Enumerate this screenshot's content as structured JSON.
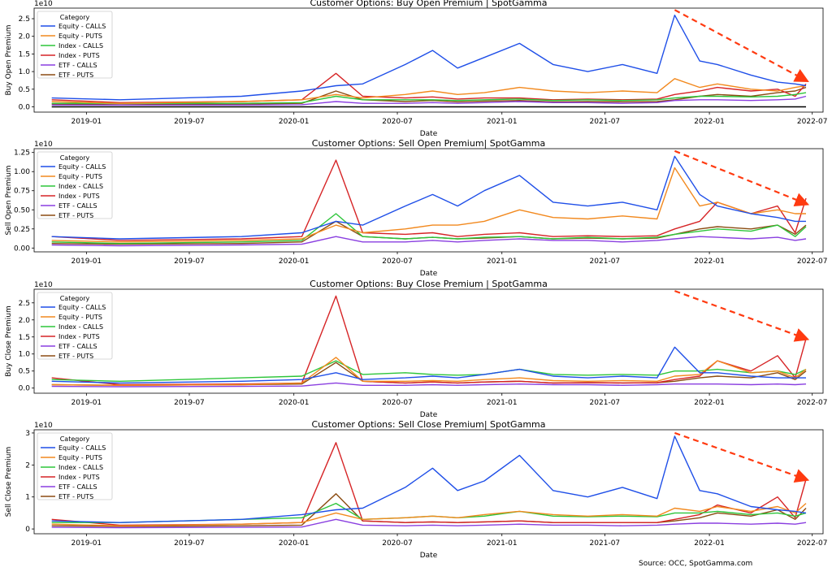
{
  "footer": {
    "source": "Source: OCC, SpotGamma.com"
  },
  "styles": {
    "series_colors": [
      "#1f4fe8",
      "#f2891e",
      "#2dc53a",
      "#d62426",
      "#8a3fe0",
      "#8b4c12"
    ],
    "arrow_color": "#ff3a10"
  },
  "chart_data": [
    {
      "type": "line",
      "title": "Customer Options: Buy Open Premium | SpotGamma",
      "ylabel": "Buy Open Premium",
      "xlabel": "Date",
      "scale_label": "1e10",
      "xticks": [
        "2019-01",
        "2019-07",
        "2020-01",
        "2020-07",
        "2021-01",
        "2021-07",
        "2022-01",
        "2022-07"
      ],
      "yticks": [
        "0.0",
        "0.5",
        "1.0",
        "1.5",
        "2.0",
        "2.5"
      ],
      "ylim": [
        -0.15,
        2.8
      ],
      "xlim": [
        "2018-10-01",
        "2022-07-20"
      ],
      "legend_title": "Category",
      "legend_position": "top-left",
      "zero_line": true,
      "x": [
        "2018-11-01",
        "2019-03-01",
        "2019-10-01",
        "2020-01-15",
        "2020-03-15",
        "2020-05-01",
        "2020-07-15",
        "2020-09-01",
        "2020-10-15",
        "2020-12-01",
        "2021-02-01",
        "2021-04-01",
        "2021-06-01",
        "2021-08-01",
        "2021-10-01",
        "2021-11-01",
        "2021-12-15",
        "2022-01-15",
        "2022-03-15",
        "2022-05-01",
        "2022-06-01",
        "2022-06-20"
      ],
      "series": [
        {
          "name": "Equity - CALLS",
          "values": [
            0.25,
            0.2,
            0.3,
            0.45,
            0.6,
            0.65,
            1.2,
            1.6,
            1.1,
            1.4,
            1.8,
            1.2,
            1.0,
            1.2,
            0.95,
            2.6,
            1.3,
            1.2,
            0.9,
            0.7,
            0.65,
            0.6
          ]
        },
        {
          "name": "Equity - PUTS",
          "values": [
            0.15,
            0.1,
            0.15,
            0.2,
            0.35,
            0.25,
            0.35,
            0.45,
            0.35,
            0.4,
            0.55,
            0.45,
            0.4,
            0.45,
            0.4,
            0.8,
            0.55,
            0.65,
            0.5,
            0.45,
            0.55,
            0.6
          ]
        },
        {
          "name": "Index - CALLS",
          "values": [
            0.1,
            0.1,
            0.1,
            0.12,
            0.3,
            0.2,
            0.2,
            0.2,
            0.18,
            0.2,
            0.22,
            0.18,
            0.2,
            0.18,
            0.2,
            0.25,
            0.3,
            0.3,
            0.28,
            0.3,
            0.35,
            0.4
          ]
        },
        {
          "name": "Index - PUTS",
          "values": [
            0.2,
            0.12,
            0.15,
            0.2,
            0.95,
            0.3,
            0.25,
            0.28,
            0.22,
            0.25,
            0.25,
            0.2,
            0.22,
            0.2,
            0.22,
            0.35,
            0.45,
            0.55,
            0.45,
            0.5,
            0.3,
            0.65
          ]
        },
        {
          "name": "ETF - CALLS",
          "values": [
            0.05,
            0.05,
            0.05,
            0.06,
            0.15,
            0.1,
            0.1,
            0.12,
            0.1,
            0.12,
            0.15,
            0.12,
            0.12,
            0.1,
            0.12,
            0.18,
            0.2,
            0.2,
            0.18,
            0.2,
            0.22,
            0.3
          ]
        },
        {
          "name": "ETF - PUTS",
          "values": [
            0.08,
            0.06,
            0.08,
            0.1,
            0.45,
            0.2,
            0.15,
            0.18,
            0.14,
            0.16,
            0.18,
            0.14,
            0.15,
            0.14,
            0.15,
            0.2,
            0.3,
            0.35,
            0.3,
            0.4,
            0.45,
            0.55
          ]
        }
      ],
      "arrow": {
        "from": [
          "2021-11-01",
          2.75
        ],
        "to": [
          "2022-06-20",
          0.75
        ]
      }
    },
    {
      "type": "line",
      "title": "Customer Options: Sell Open Premium| SpotGamma",
      "ylabel": "Sell Open Premium",
      "xlabel": "Date",
      "scale_label": "1e10",
      "xticks": [
        "2019-01",
        "2019-07",
        "2020-01",
        "2020-07",
        "2021-01",
        "2021-07",
        "2022-01",
        "2022-07"
      ],
      "yticks": [
        "0.00",
        "0.25",
        "0.50",
        "0.75",
        "1.00",
        "1.25"
      ],
      "ylim": [
        -0.05,
        1.3
      ],
      "xlim": [
        "2018-10-01",
        "2022-07-20"
      ],
      "legend_title": "Category",
      "legend_position": "top-left",
      "zero_line": false,
      "x": [
        "2018-11-01",
        "2019-03-01",
        "2019-10-01",
        "2020-01-15",
        "2020-03-15",
        "2020-05-01",
        "2020-07-15",
        "2020-09-01",
        "2020-10-15",
        "2020-12-01",
        "2021-02-01",
        "2021-04-01",
        "2021-06-01",
        "2021-08-01",
        "2021-10-01",
        "2021-11-01",
        "2021-12-15",
        "2022-01-15",
        "2022-03-15",
        "2022-05-01",
        "2022-06-01",
        "2022-06-20"
      ],
      "series": [
        {
          "name": "Equity - CALLS",
          "values": [
            0.15,
            0.12,
            0.15,
            0.2,
            0.35,
            0.3,
            0.55,
            0.7,
            0.55,
            0.75,
            0.95,
            0.6,
            0.55,
            0.6,
            0.5,
            1.2,
            0.7,
            0.55,
            0.45,
            0.4,
            0.35,
            0.35
          ]
        },
        {
          "name": "Equity - PUTS",
          "values": [
            0.1,
            0.08,
            0.1,
            0.12,
            0.3,
            0.2,
            0.25,
            0.3,
            0.3,
            0.35,
            0.5,
            0.4,
            0.38,
            0.42,
            0.38,
            1.05,
            0.55,
            0.6,
            0.45,
            0.5,
            0.45,
            0.45
          ]
        },
        {
          "name": "Index - CALLS",
          "values": [
            0.08,
            0.06,
            0.08,
            0.1,
            0.45,
            0.15,
            0.12,
            0.14,
            0.12,
            0.14,
            0.15,
            0.12,
            0.14,
            0.12,
            0.14,
            0.18,
            0.22,
            0.25,
            0.22,
            0.3,
            0.15,
            0.28
          ]
        },
        {
          "name": "Index - PUTS",
          "values": [
            0.15,
            0.1,
            0.12,
            0.15,
            1.15,
            0.2,
            0.18,
            0.2,
            0.15,
            0.18,
            0.2,
            0.15,
            0.16,
            0.15,
            0.16,
            0.25,
            0.35,
            0.6,
            0.45,
            0.55,
            0.2,
            0.65
          ]
        },
        {
          "name": "ETF - CALLS",
          "values": [
            0.04,
            0.03,
            0.04,
            0.05,
            0.15,
            0.08,
            0.08,
            0.1,
            0.08,
            0.1,
            0.12,
            0.1,
            0.1,
            0.08,
            0.1,
            0.12,
            0.15,
            0.14,
            0.12,
            0.14,
            0.1,
            0.12
          ]
        },
        {
          "name": "ETF - PUTS",
          "values": [
            0.06,
            0.05,
            0.06,
            0.08,
            0.35,
            0.15,
            0.12,
            0.14,
            0.12,
            0.13,
            0.15,
            0.12,
            0.13,
            0.12,
            0.13,
            0.18,
            0.25,
            0.28,
            0.25,
            0.3,
            0.18,
            0.3
          ]
        }
      ],
      "arrow": {
        "from": [
          "2021-11-01",
          1.27
        ],
        "to": [
          "2022-06-20",
          0.58
        ]
      }
    },
    {
      "type": "line",
      "title": "Customer Options: Buy Close Premium | SpotGamma",
      "ylabel": "Buy Close Premium",
      "xlabel": "Date",
      "scale_label": "1e10",
      "xticks": [
        "2019-01",
        "2019-07",
        "2020-01",
        "2020-07",
        "2021-01",
        "2021-07",
        "2022-01",
        "2022-07"
      ],
      "yticks": [
        "0.0",
        "0.5",
        "1.0",
        "1.5",
        "2.0",
        "2.5"
      ],
      "ylim": [
        -0.15,
        2.9
      ],
      "xlim": [
        "2018-10-01",
        "2022-07-20"
      ],
      "legend_title": "Category",
      "legend_position": "top-left",
      "zero_line": false,
      "x": [
        "2018-11-01",
        "2019-03-01",
        "2019-10-01",
        "2020-01-15",
        "2020-03-15",
        "2020-05-01",
        "2020-07-15",
        "2020-09-01",
        "2020-10-15",
        "2020-12-01",
        "2021-02-01",
        "2021-04-01",
        "2021-06-01",
        "2021-08-01",
        "2021-10-01",
        "2021-11-01",
        "2021-12-15",
        "2022-01-15",
        "2022-03-15",
        "2022-05-01",
        "2022-06-01",
        "2022-06-20"
      ],
      "series": [
        {
          "name": "Equity - CALLS",
          "values": [
            0.2,
            0.15,
            0.2,
            0.25,
            0.45,
            0.25,
            0.3,
            0.35,
            0.3,
            0.4,
            0.55,
            0.35,
            0.3,
            0.35,
            0.3,
            1.2,
            0.45,
            0.45,
            0.35,
            0.3,
            0.3,
            0.3
          ]
        },
        {
          "name": "Equity - PUTS",
          "values": [
            0.1,
            0.08,
            0.1,
            0.15,
            0.9,
            0.2,
            0.2,
            0.22,
            0.2,
            0.25,
            0.3,
            0.22,
            0.2,
            0.22,
            0.2,
            0.35,
            0.4,
            0.8,
            0.45,
            0.5,
            0.3,
            0.55
          ]
        },
        {
          "name": "Index - CALLS",
          "values": [
            0.25,
            0.2,
            0.3,
            0.35,
            0.8,
            0.4,
            0.45,
            0.4,
            0.38,
            0.4,
            0.55,
            0.4,
            0.38,
            0.4,
            0.38,
            0.5,
            0.5,
            0.55,
            0.45,
            0.5,
            0.4,
            0.55
          ]
        },
        {
          "name": "Index - PUTS",
          "values": [
            0.3,
            0.1,
            0.12,
            0.15,
            2.7,
            0.2,
            0.15,
            0.18,
            0.15,
            0.18,
            0.2,
            0.15,
            0.16,
            0.15,
            0.16,
            0.25,
            0.35,
            0.8,
            0.5,
            0.95,
            0.3,
            1.45
          ]
        },
        {
          "name": "ETF - CALLS",
          "values": [
            0.05,
            0.04,
            0.05,
            0.06,
            0.15,
            0.08,
            0.08,
            0.1,
            0.08,
            0.1,
            0.12,
            0.1,
            0.1,
            0.08,
            0.1,
            0.12,
            0.12,
            0.12,
            0.1,
            0.12,
            0.1,
            0.12
          ]
        },
        {
          "name": "ETF - PUTS",
          "values": [
            0.1,
            0.08,
            0.1,
            0.12,
            0.75,
            0.2,
            0.15,
            0.18,
            0.15,
            0.18,
            0.2,
            0.15,
            0.16,
            0.15,
            0.16,
            0.2,
            0.3,
            0.35,
            0.3,
            0.45,
            0.25,
            0.5
          ]
        }
      ],
      "arrow": {
        "from": [
          "2021-11-01",
          2.85
        ],
        "to": [
          "2022-06-20",
          1.45
        ]
      }
    },
    {
      "type": "line",
      "title": "Customer Options: Sell Close Premium| SpotGamma",
      "ylabel": "Sell Close Premium",
      "xlabel": "Date",
      "scale_label": "1e10",
      "xticks": [
        "2019-01",
        "2019-07",
        "2020-01",
        "2020-07",
        "2021-01",
        "2021-07",
        "2022-01",
        "2022-07"
      ],
      "yticks": [
        "0",
        "1",
        "2",
        "3"
      ],
      "ylim": [
        -0.15,
        3.1
      ],
      "xlim": [
        "2018-10-01",
        "2022-07-20"
      ],
      "legend_title": "Category",
      "legend_position": "top-left",
      "zero_line": false,
      "x": [
        "2018-11-01",
        "2019-03-01",
        "2019-10-01",
        "2020-01-15",
        "2020-03-15",
        "2020-05-01",
        "2020-07-15",
        "2020-09-01",
        "2020-10-15",
        "2020-12-01",
        "2021-02-01",
        "2021-04-01",
        "2021-06-01",
        "2021-08-01",
        "2021-10-01",
        "2021-11-01",
        "2021-12-15",
        "2022-01-15",
        "2022-03-15",
        "2022-05-01",
        "2022-06-01",
        "2022-06-20"
      ],
      "series": [
        {
          "name": "Equity - CALLS",
          "values": [
            0.25,
            0.2,
            0.3,
            0.45,
            0.6,
            0.65,
            1.3,
            1.9,
            1.2,
            1.5,
            2.3,
            1.2,
            1.0,
            1.3,
            0.95,
            2.9,
            1.2,
            1.1,
            0.7,
            0.6,
            0.55,
            0.5
          ]
        },
        {
          "name": "Equity - PUTS",
          "values": [
            0.15,
            0.1,
            0.15,
            0.2,
            0.5,
            0.3,
            0.35,
            0.4,
            0.35,
            0.45,
            0.55,
            0.45,
            0.4,
            0.45,
            0.4,
            0.65,
            0.55,
            0.7,
            0.55,
            0.7,
            0.5,
            0.8
          ]
        },
        {
          "name": "Index - CALLS",
          "values": [
            0.2,
            0.2,
            0.3,
            0.35,
            0.8,
            0.3,
            0.35,
            0.4,
            0.35,
            0.4,
            0.55,
            0.4,
            0.38,
            0.4,
            0.38,
            0.5,
            0.5,
            0.55,
            0.45,
            0.5,
            0.4,
            0.5
          ]
        },
        {
          "name": "Index - PUTS",
          "values": [
            0.3,
            0.12,
            0.15,
            0.2,
            2.7,
            0.25,
            0.2,
            0.22,
            0.2,
            0.22,
            0.25,
            0.2,
            0.2,
            0.2,
            0.2,
            0.3,
            0.45,
            0.75,
            0.5,
            1.0,
            0.35,
            1.55
          ]
        },
        {
          "name": "ETF - CALLS",
          "values": [
            0.05,
            0.04,
            0.05,
            0.06,
            0.3,
            0.12,
            0.1,
            0.12,
            0.1,
            0.12,
            0.15,
            0.12,
            0.12,
            0.1,
            0.12,
            0.15,
            0.18,
            0.18,
            0.15,
            0.18,
            0.15,
            0.2
          ]
        },
        {
          "name": "ETF - PUTS",
          "values": [
            0.1,
            0.08,
            0.1,
            0.12,
            1.1,
            0.25,
            0.2,
            0.22,
            0.2,
            0.22,
            0.25,
            0.2,
            0.2,
            0.2,
            0.2,
            0.25,
            0.35,
            0.5,
            0.4,
            0.6,
            0.3,
            0.65
          ]
        }
      ],
      "arrow": {
        "from": [
          "2021-11-01",
          3.0
        ],
        "to": [
          "2022-06-20",
          1.55
        ]
      }
    }
  ]
}
